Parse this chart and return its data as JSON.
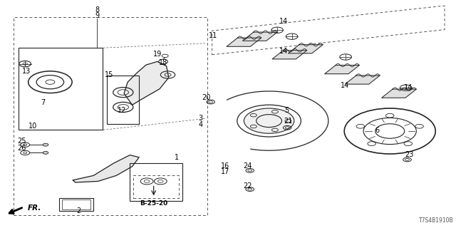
{
  "title": "",
  "bg_color": "#ffffff",
  "diagram_code": "T7S4B1910B",
  "box_label": "B-25-20",
  "line_color": "#222222",
  "dashed_line_color": "#555555",
  "text_color": "#000000",
  "font_size": 7.0
}
